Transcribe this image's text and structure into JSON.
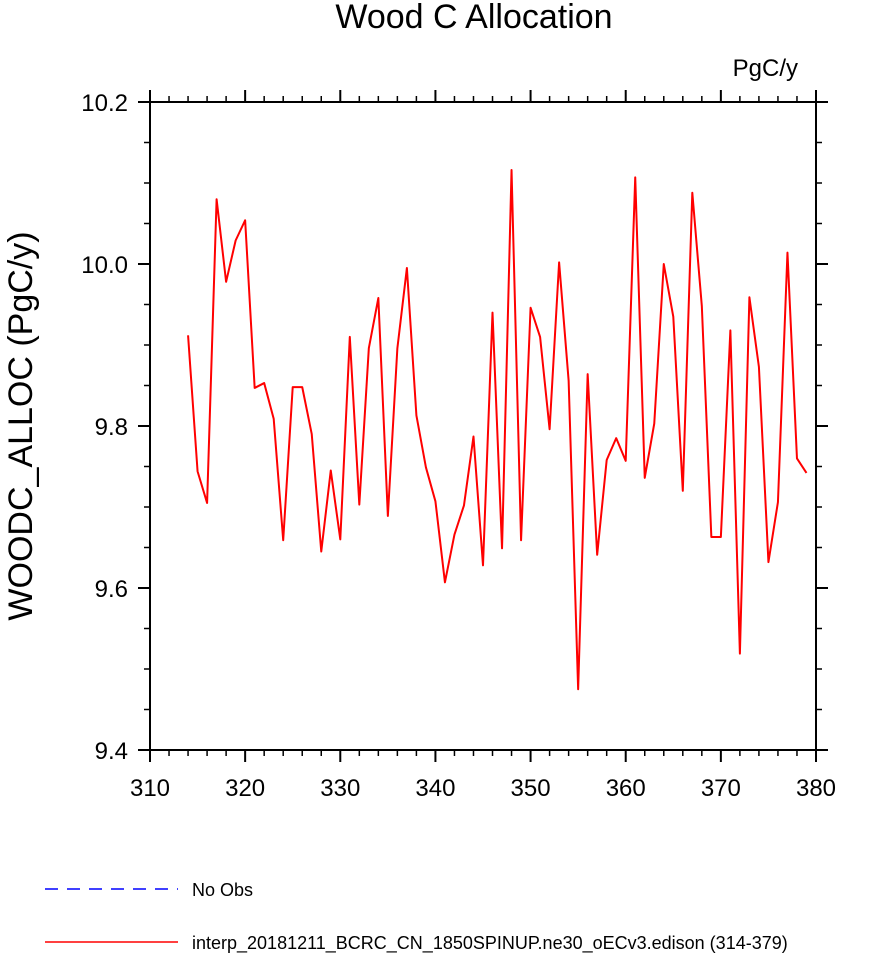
{
  "chart_data": {
    "type": "line",
    "title": "Wood C Allocation",
    "units_label": "PgC/y",
    "ylabel": "WOODC_ALLOC  (PgC/y)",
    "xlabel": "",
    "xlim": [
      310,
      380
    ],
    "ylim": [
      9.4,
      10.2
    ],
    "x_ticks": [
      310,
      320,
      330,
      340,
      350,
      360,
      370,
      380
    ],
    "x_tick_labels": [
      "310",
      "320",
      "330",
      "340",
      "350",
      "360",
      "370",
      "380"
    ],
    "y_ticks": [
      9.4,
      9.6,
      9.8,
      10.0,
      10.2
    ],
    "y_tick_labels": [
      "9.4",
      "9.6",
      "9.8",
      "10.0",
      "10.2"
    ],
    "grid": false,
    "legend_position": "bottom",
    "series": [
      {
        "name": "No Obs",
        "color": "#0000ff",
        "dash": "dashed",
        "x": [],
        "y": []
      },
      {
        "name": "interp_20181211_BCRC_CN_1850SPINUP.ne30_oECv3.edison (314-379)",
        "color": "#ff0000",
        "dash": "solid",
        "x": [
          314,
          315,
          316,
          317,
          318,
          319,
          320,
          321,
          322,
          323,
          324,
          325,
          326,
          327,
          328,
          329,
          330,
          331,
          332,
          333,
          334,
          335,
          336,
          337,
          338,
          339,
          340,
          341,
          342,
          343,
          344,
          345,
          346,
          347,
          348,
          349,
          350,
          351,
          352,
          353,
          354,
          355,
          356,
          357,
          358,
          359,
          360,
          361,
          362,
          363,
          364,
          365,
          366,
          367,
          368,
          369,
          370,
          371,
          372,
          373,
          374,
          375,
          376,
          377,
          378,
          379
        ],
        "y": [
          9.912,
          9.744,
          9.705,
          10.08,
          9.978,
          10.029,
          10.054,
          9.847,
          9.853,
          9.809,
          9.659,
          9.848,
          9.848,
          9.79,
          9.645,
          9.745,
          9.66,
          9.91,
          9.703,
          9.896,
          9.958,
          9.689,
          9.896,
          9.995,
          9.813,
          9.749,
          9.707,
          9.607,
          9.666,
          9.702,
          9.787,
          9.628,
          9.94,
          9.649,
          10.116,
          9.659,
          9.946,
          9.91,
          9.796,
          10.002,
          9.856,
          9.475,
          9.864,
          9.641,
          9.758,
          9.785,
          9.757,
          10.107,
          9.736,
          9.803,
          10.0,
          9.935,
          9.72,
          10.088,
          9.948,
          9.663,
          9.663,
          9.918,
          9.519,
          9.959,
          9.873,
          9.632,
          9.706,
          10.014,
          9.76,
          9.742
        ]
      }
    ]
  }
}
